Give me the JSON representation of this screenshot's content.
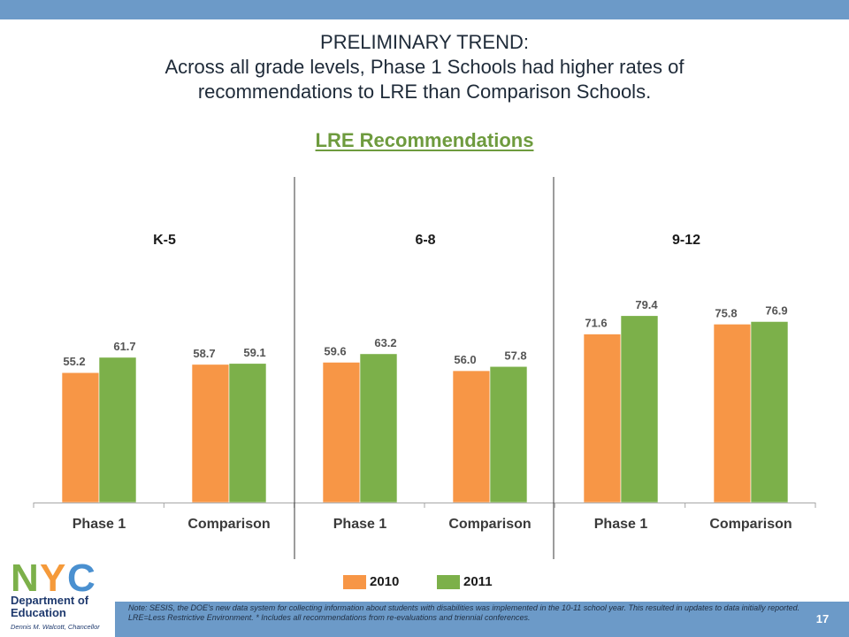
{
  "slide": {
    "title_line1": "PRELIMINARY TREND:",
    "title_line2": "Across all grade levels, Phase 1 Schools had higher rates of",
    "title_line3": "recommendations to LRE than Comparison Schools.",
    "note": "Note: SESIS, the DOE's new data system for collecting information about students with disabilities was implemented in the 10-11 school year. This resulted in updates to data initially reported. LRE=Less Restrictive Environment. * Includes all recommendations from re-evaluations and triennial conferences.",
    "page_number": "17"
  },
  "logo": {
    "letters": "NYC",
    "line1": "Department of",
    "line2": "Education",
    "chancellor": "Dennis M. Walcott, Chancellor"
  },
  "colors": {
    "band": "#6c9ac8",
    "series_2010": "#f79646",
    "series_2011": "#7cb04a",
    "title_green": "#6e9b3e",
    "logo_blue": "#4a90d0",
    "logo_orange": "#f59a3a",
    "logo_green": "#7cb04a"
  },
  "chart_data": {
    "type": "bar",
    "title": "LRE Recommendations",
    "panels": [
      {
        "name": "K-5",
        "categories": [
          "Phase 1",
          "Comparison"
        ],
        "series": [
          {
            "name": "2010",
            "values": [
              55.2,
              58.7
            ]
          },
          {
            "name": "2011",
            "values": [
              61.7,
              59.1
            ]
          }
        ]
      },
      {
        "name": "6-8",
        "categories": [
          "Phase 1",
          "Comparison"
        ],
        "series": [
          {
            "name": "2010",
            "values": [
              59.6,
              56.0
            ]
          },
          {
            "name": "2011",
            "values": [
              63.2,
              57.8
            ]
          }
        ]
      },
      {
        "name": "9-12",
        "categories": [
          "Phase 1",
          "Comparison"
        ],
        "series": [
          {
            "name": "2010",
            "values": [
              71.6,
              75.8
            ]
          },
          {
            "name": "2011",
            "values": [
              79.4,
              76.9
            ]
          }
        ]
      }
    ],
    "legend": [
      "2010",
      "2011"
    ],
    "legend_position": "bottom",
    "grid": false
  }
}
